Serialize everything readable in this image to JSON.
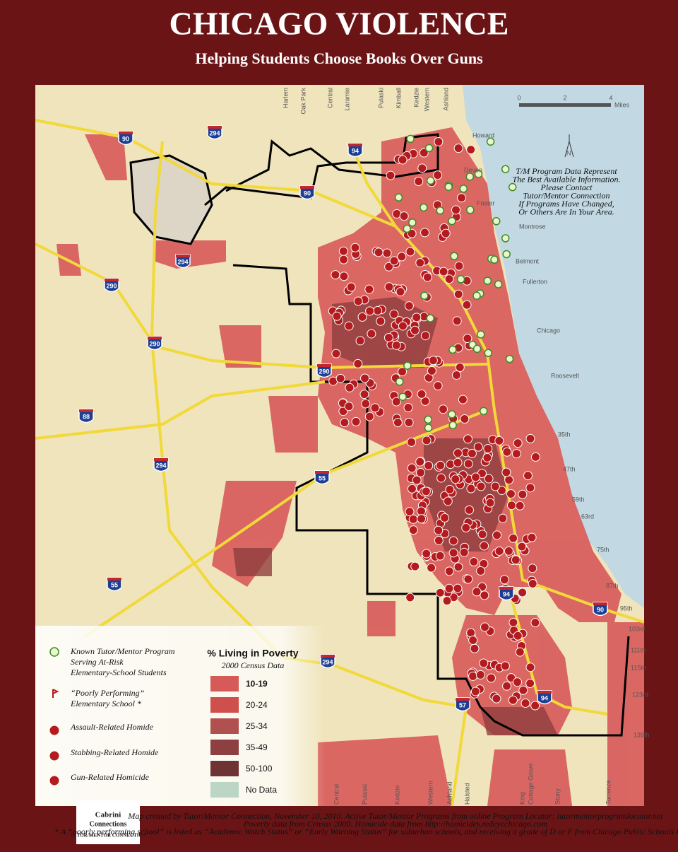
{
  "header": {
    "title": "CHICAGO VIOLENCE",
    "subtitle": "Helping Students Choose Books Over Guns"
  },
  "scale": {
    "ticks": [
      "0",
      "2",
      "4"
    ],
    "unit": "Miles",
    "north": "N"
  },
  "note": [
    "T/M Program Data Represent",
    "The Best Available Information.",
    "Please Contact",
    "Tutor/Mentor Connection",
    "If Programs Have Changed,",
    "Or Others Are In Your Area."
  ],
  "street_labels_top": [
    "Harlem",
    "Oak Park",
    "Central",
    "Laramie",
    "Pulaski",
    "Kimball",
    "Kedzie",
    "Western",
    "Ashland"
  ],
  "street_labels_east": [
    "Howard",
    "Devon",
    "Foster",
    "Montrose",
    "Belmont",
    "Fullerton",
    "Chicago",
    "Roosevelt",
    "35th",
    "47th",
    "59th",
    "63rd",
    "75th",
    "87th",
    "95th",
    "103rd",
    "111th",
    "115th",
    "123rd",
    "139th"
  ],
  "street_labels_bottom": [
    "Central",
    "Pulaski",
    "Kedzie",
    "Western",
    "Ashland",
    "Halsted",
    "King",
    "Cottage Grove",
    "Stony",
    "Torrence"
  ],
  "highway_shields": [
    "90",
    "294",
    "94",
    "90",
    "294",
    "290",
    "290",
    "290",
    "88",
    "294",
    "55",
    "55",
    "94",
    "90",
    "294",
    "57",
    "94"
  ],
  "legend": {
    "items": [
      {
        "lines": [
          "Known Tutor/Mentor Program",
          "Serving At-Risk",
          "Elementary-School Students"
        ]
      },
      {
        "lines": [
          "“Poorly Performing”",
          "Elementary School *"
        ]
      },
      {
        "lines": [
          "Assault-Related Homide"
        ]
      },
      {
        "lines": [
          "Stabbing-Related Homide"
        ]
      },
      {
        "lines": [
          "Gun-Related Homicide"
        ]
      }
    ],
    "poverty": {
      "title": "% Living in Poverty",
      "subtitle": "2000 Census Data",
      "classes": [
        "10-19",
        "20-24",
        "25-34",
        "35-49",
        "50-100",
        "No Data"
      ]
    }
  },
  "footer": {
    "logo": [
      "Cabrini",
      "Connections",
      "TUTOR/MENTOR CONNECTION"
    ],
    "credits": [
      "Map created by Tutor/Mentor Connection, November 10, 2010.  Active Tutor/Mentor Programs from online Program Locator: tutormentorprogramlocator.net",
      "Poverty data from Census 2000.  Homicide data from http://homicides.redeyechicago.com",
      "* A “poorly performing school” is listed as “Academic Watch Status” or “Early Warning Status” for suburban schools, and receiving a grade of D or F from Chicago Public Schools Internal Grading."
    ]
  }
}
